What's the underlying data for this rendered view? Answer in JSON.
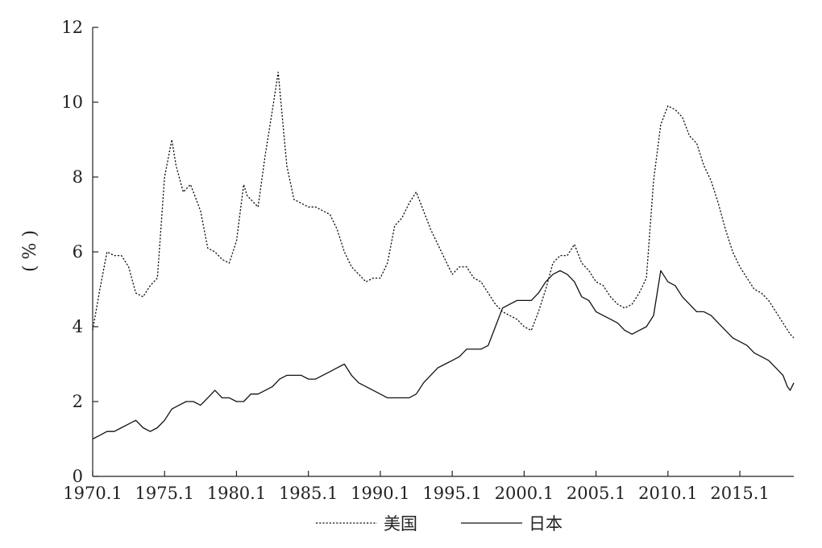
{
  "chart_data": {
    "type": "line",
    "title": "",
    "xlabel": "",
    "ylabel": "( % )",
    "xlim": [
      1970.0,
      2018.75
    ],
    "ylim": [
      0,
      12
    ],
    "grid": false,
    "legend_position": "bottom-center",
    "x_ticks": [
      1970.0,
      1975.0,
      1980.0,
      1985.0,
      1990.0,
      1995.0,
      2000.0,
      2005.0,
      2010.0,
      2015.0
    ],
    "x_tick_labels": [
      "1970.1",
      "1975.1",
      "1980.1",
      "1985.1",
      "1990.1",
      "1995.1",
      "2000.1",
      "2005.1",
      "2010.1",
      "2015.1"
    ],
    "y_ticks": [
      0,
      2,
      4,
      6,
      8,
      10,
      12
    ],
    "y_tick_labels": [
      "0",
      "2",
      "4",
      "6",
      "8",
      "10",
      "12"
    ],
    "series": [
      {
        "name": "美国",
        "style": "dotted",
        "x": [
          1970.0,
          1970.5,
          1971.0,
          1971.5,
          1972.0,
          1972.5,
          1973.0,
          1973.5,
          1974.0,
          1974.5,
          1975.0,
          1975.5,
          1975.8,
          1976.3,
          1976.8,
          1977.5,
          1978.0,
          1978.5,
          1979.0,
          1979.5,
          1980.0,
          1980.5,
          1980.75,
          1981.0,
          1981.5,
          1982.0,
          1982.5,
          1982.9,
          1983.5,
          1984.0,
          1984.5,
          1985.0,
          1985.5,
          1986.0,
          1986.5,
          1987.0,
          1987.5,
          1988.0,
          1988.5,
          1989.0,
          1989.5,
          1990.0,
          1990.5,
          1991.0,
          1991.5,
          1992.0,
          1992.5,
          1993.0,
          1993.5,
          1994.0,
          1994.5,
          1995.0,
          1995.5,
          1996.0,
          1996.5,
          1997.0,
          1997.5,
          1998.0,
          1998.5,
          1999.0,
          1999.5,
          2000.0,
          2000.5,
          2001.0,
          2001.5,
          2002.0,
          2002.5,
          2003.0,
          2003.5,
          2004.0,
          2004.5,
          2005.0,
          2005.5,
          2006.0,
          2006.5,
          2007.0,
          2007.5,
          2008.0,
          2008.5,
          2009.0,
          2009.5,
          2010.0,
          2010.5,
          2011.0,
          2011.5,
          2012.0,
          2012.5,
          2013.0,
          2013.5,
          2014.0,
          2014.5,
          2015.0,
          2015.5,
          2016.0,
          2016.5,
          2017.0,
          2017.5,
          2018.0,
          2018.5,
          2018.75
        ],
        "values": [
          3.9,
          5.0,
          6.0,
          5.9,
          5.9,
          5.6,
          4.9,
          4.8,
          5.1,
          5.3,
          8.0,
          9.0,
          8.3,
          7.6,
          7.8,
          7.1,
          6.1,
          6.0,
          5.8,
          5.7,
          6.3,
          7.8,
          7.5,
          7.4,
          7.2,
          8.6,
          9.8,
          10.8,
          8.3,
          7.4,
          7.3,
          7.2,
          7.2,
          7.1,
          7.0,
          6.6,
          6.0,
          5.6,
          5.4,
          5.2,
          5.3,
          5.3,
          5.7,
          6.7,
          6.9,
          7.3,
          7.6,
          7.1,
          6.6,
          6.2,
          5.8,
          5.4,
          5.6,
          5.6,
          5.3,
          5.2,
          4.9,
          4.6,
          4.4,
          4.3,
          4.2,
          4.0,
          3.9,
          4.4,
          5.0,
          5.7,
          5.9,
          5.9,
          6.2,
          5.7,
          5.5,
          5.2,
          5.1,
          4.8,
          4.6,
          4.5,
          4.6,
          4.9,
          5.3,
          7.9,
          9.4,
          9.9,
          9.8,
          9.6,
          9.1,
          8.9,
          8.3,
          7.9,
          7.3,
          6.6,
          6.0,
          5.6,
          5.3,
          5.0,
          4.9,
          4.7,
          4.4,
          4.1,
          3.8,
          3.7
        ]
      },
      {
        "name": "日本",
        "style": "solid",
        "x": [
          1970.0,
          1970.5,
          1971.0,
          1971.5,
          1972.0,
          1972.5,
          1973.0,
          1973.5,
          1974.0,
          1974.5,
          1975.0,
          1975.5,
          1976.0,
          1976.5,
          1977.0,
          1977.5,
          1978.0,
          1978.5,
          1979.0,
          1979.5,
          1980.0,
          1980.5,
          1981.0,
          1981.5,
          1982.0,
          1982.5,
          1983.0,
          1983.5,
          1984.0,
          1984.5,
          1985.0,
          1985.5,
          1986.0,
          1986.5,
          1987.0,
          1987.5,
          1988.0,
          1988.5,
          1989.0,
          1989.5,
          1990.0,
          1990.5,
          1991.0,
          1991.5,
          1992.0,
          1992.5,
          1993.0,
          1993.5,
          1994.0,
          1994.5,
          1995.0,
          1995.5,
          1996.0,
          1996.5,
          1997.0,
          1997.5,
          1998.0,
          1998.5,
          1999.0,
          1999.5,
          2000.0,
          2000.5,
          2001.0,
          2001.5,
          2002.0,
          2002.5,
          2003.0,
          2003.5,
          2004.0,
          2004.5,
          2005.0,
          2005.5,
          2006.0,
          2006.5,
          2007.0,
          2007.5,
          2008.0,
          2008.5,
          2009.0,
          2009.5,
          2010.0,
          2010.5,
          2011.0,
          2011.5,
          2012.0,
          2012.5,
          2013.0,
          2013.5,
          2014.0,
          2014.5,
          2015.0,
          2015.5,
          2016.0,
          2016.5,
          2017.0,
          2017.5,
          2018.0,
          2018.3,
          2018.5,
          2018.75
        ],
        "values": [
          1.0,
          1.1,
          1.2,
          1.2,
          1.3,
          1.4,
          1.5,
          1.3,
          1.2,
          1.3,
          1.5,
          1.8,
          1.9,
          2.0,
          2.0,
          1.9,
          2.1,
          2.3,
          2.1,
          2.1,
          2.0,
          2.0,
          2.2,
          2.2,
          2.3,
          2.4,
          2.6,
          2.7,
          2.7,
          2.7,
          2.6,
          2.6,
          2.7,
          2.8,
          2.9,
          3.0,
          2.7,
          2.5,
          2.4,
          2.3,
          2.2,
          2.1,
          2.1,
          2.1,
          2.1,
          2.2,
          2.5,
          2.7,
          2.9,
          3.0,
          3.1,
          3.2,
          3.4,
          3.4,
          3.4,
          3.5,
          4.0,
          4.5,
          4.6,
          4.7,
          4.7,
          4.7,
          4.9,
          5.2,
          5.4,
          5.5,
          5.4,
          5.2,
          4.8,
          4.7,
          4.4,
          4.3,
          4.2,
          4.1,
          3.9,
          3.8,
          3.9,
          4.0,
          4.3,
          5.5,
          5.2,
          5.1,
          4.8,
          4.6,
          4.4,
          4.4,
          4.3,
          4.1,
          3.9,
          3.7,
          3.6,
          3.5,
          3.3,
          3.2,
          3.1,
          2.9,
          2.7,
          2.4,
          2.3,
          2.5
        ]
      }
    ]
  }
}
